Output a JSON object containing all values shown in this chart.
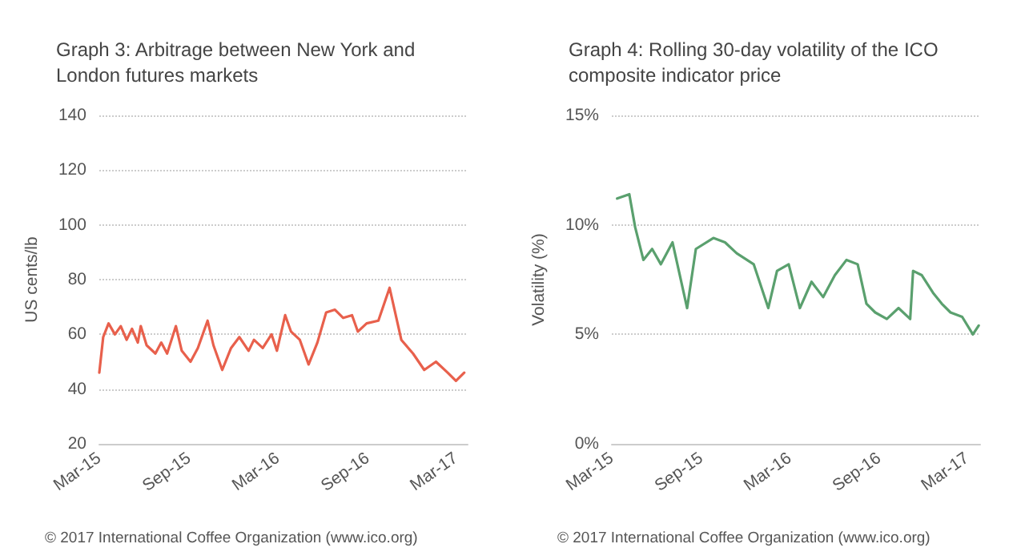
{
  "chart_data": [
    {
      "type": "line",
      "title": "Graph 3: Arbitrage between New York and London futures markets",
      "ylabel": "US cents/lb",
      "annotations": [
        "© 2017 International Coffee Organization (www.ico.org)"
      ],
      "grid": "y",
      "marker": "none",
      "line_style": "solid",
      "xlim": [
        "2015-03-01",
        "2017-03-25"
      ],
      "xticks": [
        {
          "value": "2015-03-01",
          "label": "Mar-15"
        },
        {
          "value": "2015-09-01",
          "label": "Sep-15"
        },
        {
          "value": "2016-03-01",
          "label": "Mar-16"
        },
        {
          "value": "2016-09-01",
          "label": "Sep-16"
        },
        {
          "value": "2017-03-01",
          "label": "Mar-17"
        }
      ],
      "ylim": [
        20,
        140
      ],
      "yticks": [
        20,
        40,
        60,
        80,
        100,
        120,
        140
      ],
      "series": [
        {
          "color": "#e8604c",
          "x": [
            "2015-03-01",
            "2015-03-09",
            "2015-03-20",
            "2015-04-02",
            "2015-04-14",
            "2015-04-26",
            "2015-05-07",
            "2015-05-19",
            "2015-05-25",
            "2015-06-06",
            "2015-06-24",
            "2015-07-06",
            "2015-07-18",
            "2015-08-05",
            "2015-08-17",
            "2015-09-04",
            "2015-09-19",
            "2015-10-09",
            "2015-10-21",
            "2015-11-08",
            "2015-11-26",
            "2015-12-13",
            "2016-01-01",
            "2016-01-12",
            "2016-01-30",
            "2016-02-17",
            "2016-02-28",
            "2016-03-16",
            "2016-03-28",
            "2016-04-15",
            "2016-05-03",
            "2016-05-21",
            "2016-06-08",
            "2016-06-26",
            "2016-07-13",
            "2016-07-31",
            "2016-08-12",
            "2016-08-30",
            "2016-09-23",
            "2016-10-16",
            "2016-11-09",
            "2016-12-03",
            "2016-12-26",
            "2017-01-19",
            "2017-02-12",
            "2017-03-01",
            "2017-03-18"
          ],
          "values": [
            46,
            59,
            64,
            60,
            63,
            58,
            62,
            57,
            63,
            56,
            53,
            57,
            53,
            63,
            54,
            50,
            55,
            65,
            56,
            47,
            55,
            59,
            54,
            58,
            55,
            60,
            54,
            67,
            61,
            58,
            49,
            57,
            68,
            69,
            66,
            67,
            61,
            64,
            65,
            77,
            58,
            53,
            47,
            50,
            46,
            43,
            46
          ]
        }
      ]
    },
    {
      "type": "line",
      "title": "Graph 4: Rolling 30-day volatility of the ICO composite indicator price",
      "ylabel": "Volatility (%)",
      "annotations": [
        "© 2017 International Coffee Organization (www.ico.org)"
      ],
      "grid": "y",
      "marker": "none",
      "line_style": "solid",
      "xlim": [
        "2015-03-01",
        "2017-03-28"
      ],
      "xticks": [
        {
          "value": "2015-03-01",
          "label": "Mar-15"
        },
        {
          "value": "2015-09-01",
          "label": "Sep-15"
        },
        {
          "value": "2016-03-01",
          "label": "Mar-16"
        },
        {
          "value": "2016-09-01",
          "label": "Sep-16"
        },
        {
          "value": "2017-03-01",
          "label": "Mar-17"
        }
      ],
      "ylim": [
        0,
        15
      ],
      "yticks": [
        {
          "value": 0,
          "label": "0%"
        },
        {
          "value": 5,
          "label": "5%"
        },
        {
          "value": 10,
          "label": "10%"
        },
        {
          "value": 15,
          "label": "15%"
        }
      ],
      "series": [
        {
          "color": "#5aa06e",
          "x": [
            "2015-03-12",
            "2015-04-06",
            "2015-04-18",
            "2015-05-05",
            "2015-05-23",
            "2015-06-10",
            "2015-07-04",
            "2015-08-03",
            "2015-08-21",
            "2015-09-26",
            "2015-10-20",
            "2015-11-13",
            "2015-12-18",
            "2016-01-17",
            "2016-02-04",
            "2016-02-28",
            "2016-03-22",
            "2016-04-15",
            "2016-05-09",
            "2016-06-02",
            "2016-06-26",
            "2016-07-19",
            "2016-08-06",
            "2016-08-24",
            "2016-09-17",
            "2016-10-11",
            "2016-11-04",
            "2016-11-10",
            "2016-11-28",
            "2016-12-21",
            "2017-01-08",
            "2017-01-26",
            "2017-02-19",
            "2017-03-13",
            "2017-03-25"
          ],
          "values": [
            11.2,
            11.4,
            9.9,
            8.4,
            8.9,
            8.2,
            9.2,
            6.2,
            8.9,
            9.4,
            9.2,
            8.7,
            8.2,
            6.2,
            7.9,
            8.2,
            6.2,
            7.4,
            6.7,
            7.7,
            8.4,
            8.2,
            6.4,
            6.0,
            5.7,
            6.2,
            5.7,
            7.9,
            7.7,
            6.9,
            6.4,
            6.0,
            5.8,
            5.0,
            5.4
          ]
        }
      ]
    }
  ]
}
